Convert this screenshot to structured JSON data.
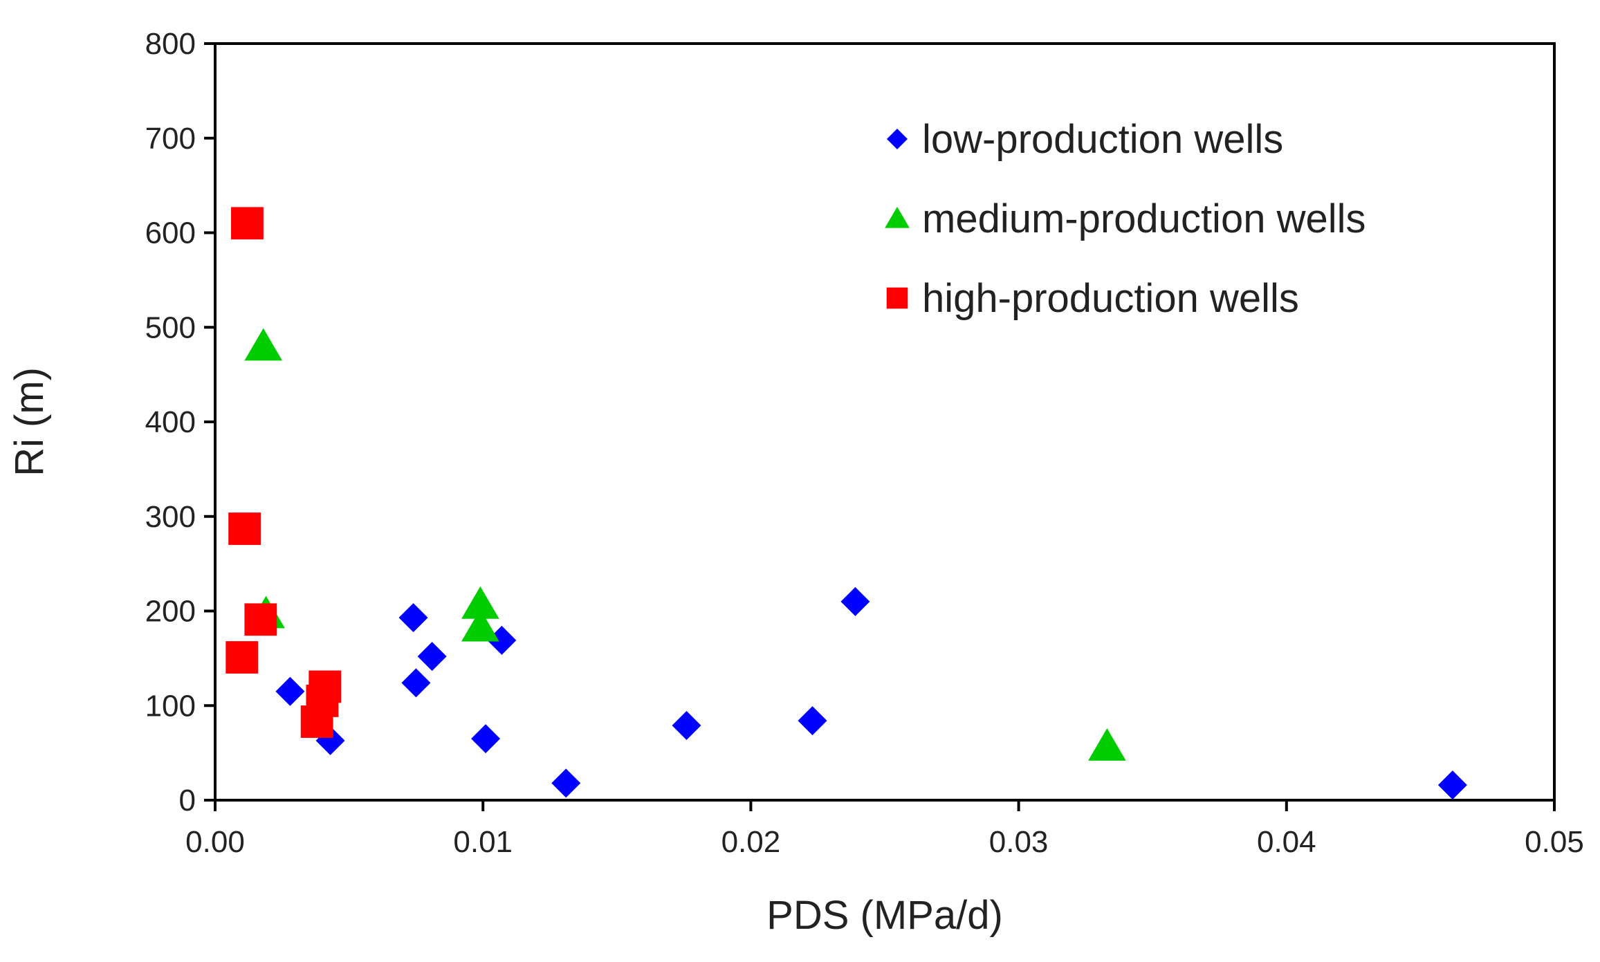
{
  "chart_data": {
    "type": "scatter",
    "title": "",
    "xlabel": "PDS (MPa/d)",
    "ylabel": "Ri (m)",
    "xlim": [
      0,
      0.05
    ],
    "ylim": [
      0,
      800
    ],
    "x_ticks": [
      0,
      0.01,
      0.02,
      0.03,
      0.04,
      0.05
    ],
    "x_tick_labels": [
      "0.00",
      "0.01",
      "0.02",
      "0.03",
      "0.04",
      "0.05"
    ],
    "y_ticks": [
      0,
      100,
      200,
      300,
      400,
      500,
      600,
      700,
      800
    ],
    "y_tick_labels": [
      "0",
      "100",
      "200",
      "300",
      "400",
      "500",
      "600",
      "700",
      "800"
    ],
    "grid": false,
    "legend_position": "top-right",
    "series": [
      {
        "name": "low-production wells",
        "marker": "diamond",
        "color": "#0000ff",
        "points": [
          {
            "x": 0.0028,
            "y": 115
          },
          {
            "x": 0.0043,
            "y": 63
          },
          {
            "x": 0.0074,
            "y": 193
          },
          {
            "x": 0.0075,
            "y": 124
          },
          {
            "x": 0.0081,
            "y": 152
          },
          {
            "x": 0.0101,
            "y": 65
          },
          {
            "x": 0.0107,
            "y": 169
          },
          {
            "x": 0.0131,
            "y": 18
          },
          {
            "x": 0.0176,
            "y": 79
          },
          {
            "x": 0.0223,
            "y": 84
          },
          {
            "x": 0.0239,
            "y": 210
          },
          {
            "x": 0.0462,
            "y": 16
          }
        ]
      },
      {
        "name": "medium-production wells",
        "marker": "triangle",
        "color": "#00cc00",
        "points": [
          {
            "x": 0.0018,
            "y": 480
          },
          {
            "x": 0.0019,
            "y": 197
          },
          {
            "x": 0.0099,
            "y": 207
          },
          {
            "x": 0.0099,
            "y": 183
          },
          {
            "x": 0.0333,
            "y": 57
          }
        ]
      },
      {
        "name": "high-production wells",
        "marker": "square",
        "color": "#ff0000",
        "points": [
          {
            "x": 0.0012,
            "y": 610
          },
          {
            "x": 0.0011,
            "y": 287
          },
          {
            "x": 0.0017,
            "y": 191
          },
          {
            "x": 0.001,
            "y": 151
          },
          {
            "x": 0.0041,
            "y": 120
          },
          {
            "x": 0.004,
            "y": 105
          },
          {
            "x": 0.0038,
            "y": 83
          }
        ]
      }
    ]
  }
}
